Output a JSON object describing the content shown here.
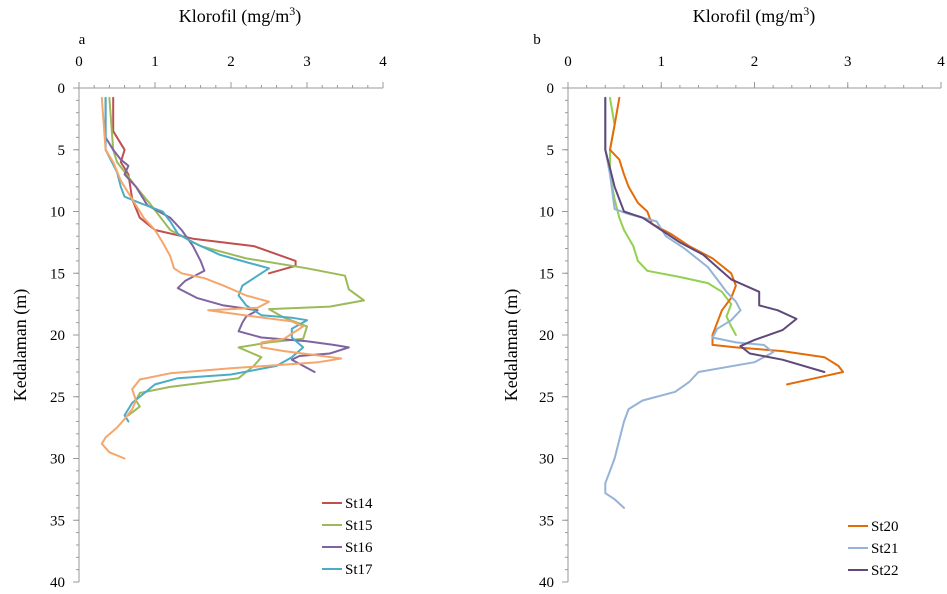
{
  "chart_data": [
    {
      "type": "line",
      "panel_label": "a",
      "title": "Klorofil (mg/m",
      "title_sup": "3",
      "title_close": ")",
      "xlabel": "",
      "ylabel": "Kedalaman (m)",
      "xlim": [
        0,
        4
      ],
      "ylim": [
        0,
        40
      ],
      "y_inverted": true,
      "x_ticks": [
        "0",
        "1",
        "2",
        "3",
        "4"
      ],
      "y_ticks": [
        "0",
        "5",
        "10",
        "15",
        "20",
        "25",
        "30",
        "35",
        "40"
      ],
      "legend_position": "bottom-right",
      "series": [
        {
          "name": "St14",
          "color": "#c0504d",
          "points": [
            [
              0.45,
              0.8
            ],
            [
              0.45,
              3.5
            ],
            [
              0.6,
              5
            ],
            [
              0.55,
              6
            ],
            [
              0.65,
              7
            ],
            [
              0.7,
              9
            ],
            [
              0.8,
              10.5
            ],
            [
              1.0,
              11.5
            ],
            [
              1.5,
              12.2
            ],
            [
              2.3,
              12.8
            ],
            [
              2.85,
              14.0
            ],
            [
              2.85,
              14.4
            ],
            [
              2.5,
              15.0
            ]
          ]
        },
        {
          "name": "St15",
          "color": "#9bbb59",
          "points": [
            [
              0.4,
              0.8
            ],
            [
              0.45,
              5
            ],
            [
              0.5,
              6
            ],
            [
              0.75,
              8
            ],
            [
              0.95,
              9.5
            ],
            [
              1.2,
              11.5
            ],
            [
              1.6,
              12.8
            ],
            [
              2.2,
              13.8
            ],
            [
              3.0,
              14.6
            ],
            [
              3.5,
              15.2
            ],
            [
              3.55,
              16.3
            ],
            [
              3.75,
              17.2
            ],
            [
              3.3,
              17.7
            ],
            [
              2.5,
              17.9
            ],
            [
              2.7,
              18.6
            ],
            [
              3.0,
              19.3
            ],
            [
              2.95,
              20.3
            ],
            [
              2.5,
              20.6
            ],
            [
              2.1,
              21.0
            ],
            [
              2.4,
              21.8
            ],
            [
              2.3,
              22.5
            ],
            [
              2.1,
              23.5
            ],
            [
              1.2,
              24.2
            ],
            [
              0.8,
              24.7
            ],
            [
              0.75,
              25.3
            ],
            [
              0.8,
              25.8
            ],
            [
              0.65,
              26.5
            ]
          ]
        },
        {
          "name": "St16",
          "color": "#8064a2",
          "points": [
            [
              0.35,
              0.8
            ],
            [
              0.35,
              4
            ],
            [
              0.45,
              5
            ],
            [
              0.55,
              5.8
            ],
            [
              0.65,
              6.3
            ],
            [
              0.6,
              7
            ],
            [
              0.75,
              8
            ],
            [
              0.9,
              9.5
            ],
            [
              1.2,
              10.5
            ],
            [
              1.35,
              11.5
            ],
            [
              1.5,
              12.8
            ],
            [
              1.6,
              14.0
            ],
            [
              1.65,
              14.8
            ],
            [
              1.4,
              15.6
            ],
            [
              1.3,
              16.2
            ],
            [
              1.55,
              17.0
            ],
            [
              1.9,
              17.6
            ],
            [
              2.35,
              18.0
            ],
            [
              2.2,
              18.5
            ],
            [
              2.15,
              19.0
            ],
            [
              2.1,
              19.7
            ],
            [
              2.4,
              20.2
            ],
            [
              3.0,
              20.5
            ],
            [
              3.35,
              20.8
            ],
            [
              3.55,
              21.0
            ],
            [
              3.3,
              21.5
            ],
            [
              2.9,
              21.7
            ],
            [
              2.8,
              22.0
            ],
            [
              3.1,
              23.0
            ]
          ]
        },
        {
          "name": "St17",
          "color": "#4bacc6",
          "points": [
            [
              0.35,
              0.8
            ],
            [
              0.35,
              5
            ],
            [
              0.5,
              6.8
            ],
            [
              0.55,
              8
            ],
            [
              0.6,
              8.8
            ],
            [
              0.8,
              9.3
            ],
            [
              1.1,
              10.0
            ],
            [
              1.2,
              10.8
            ],
            [
              1.3,
              11.8
            ],
            [
              1.5,
              12.5
            ],
            [
              1.85,
              13.5
            ],
            [
              2.2,
              14.1
            ],
            [
              2.5,
              14.6
            ],
            [
              2.35,
              15.2
            ],
            [
              2.15,
              16.0
            ],
            [
              2.1,
              16.8
            ],
            [
              2.2,
              17.6
            ],
            [
              2.4,
              18.4
            ],
            [
              2.8,
              18.6
            ],
            [
              3.0,
              18.8
            ],
            [
              2.8,
              19.5
            ],
            [
              2.8,
              20.2
            ],
            [
              2.95,
              21.0
            ],
            [
              2.8,
              21.8
            ],
            [
              2.6,
              22.5
            ],
            [
              2.0,
              23.2
            ],
            [
              1.3,
              23.5
            ],
            [
              1.0,
              24.0
            ],
            [
              0.9,
              24.5
            ],
            [
              0.7,
              25.5
            ],
            [
              0.6,
              26.5
            ],
            [
              0.65,
              27.0
            ]
          ]
        },
        {
          "name": "",
          "color": "#f4a66c",
          "points": [
            [
              0.3,
              0.8
            ],
            [
              0.35,
              5
            ],
            [
              0.45,
              6
            ],
            [
              0.55,
              7.5
            ],
            [
              0.7,
              9
            ],
            [
              0.85,
              10.5
            ],
            [
              1.0,
              11.5
            ],
            [
              1.1,
              12.5
            ],
            [
              1.2,
              13.6
            ],
            [
              1.25,
              14.6
            ],
            [
              1.35,
              15.0
            ],
            [
              1.65,
              15.4
            ],
            [
              1.9,
              16.0
            ],
            [
              2.2,
              16.8
            ],
            [
              2.5,
              17.3
            ],
            [
              2.35,
              17.8
            ],
            [
              2.0,
              17.9
            ],
            [
              1.7,
              18.0
            ],
            [
              2.3,
              18.5
            ],
            [
              2.8,
              18.9
            ],
            [
              2.95,
              19.3
            ],
            [
              2.7,
              20.3
            ],
            [
              2.4,
              20.6
            ],
            [
              2.4,
              21.0
            ],
            [
              2.7,
              21.3
            ],
            [
              3.2,
              21.7
            ],
            [
              3.45,
              21.9
            ],
            [
              3.15,
              22.2
            ],
            [
              2.0,
              22.7
            ],
            [
              1.2,
              23.1
            ],
            [
              0.8,
              23.6
            ],
            [
              0.7,
              24.4
            ],
            [
              0.75,
              25.3
            ],
            [
              0.7,
              26.0
            ],
            [
              0.6,
              26.8
            ],
            [
              0.5,
              27.5
            ],
            [
              0.35,
              28.3
            ],
            [
              0.3,
              28.8
            ],
            [
              0.4,
              29.5
            ],
            [
              0.6,
              30.0
            ]
          ]
        }
      ]
    },
    {
      "type": "line",
      "panel_label": "b",
      "title": "Klorofil (mg/m",
      "title_sup": "3",
      "title_close": ")",
      "xlabel": "",
      "ylabel": "Kedalaman (m)",
      "xlim": [
        0,
        4
      ],
      "ylim": [
        0,
        40
      ],
      "y_inverted": true,
      "x_ticks": [
        "0",
        "1",
        "2",
        "3",
        "4"
      ],
      "y_ticks": [
        "0",
        "5",
        "10",
        "15",
        "20",
        "25",
        "30",
        "35",
        "40"
      ],
      "legend_position": "bottom-right",
      "series": [
        {
          "name": "",
          "color": "#92d050",
          "points": [
            [
              0.45,
              0.8
            ],
            [
              0.5,
              3
            ],
            [
              0.45,
              5
            ],
            [
              0.45,
              7
            ],
            [
              0.5,
              9
            ],
            [
              0.55,
              10.5
            ],
            [
              0.6,
              11.5
            ],
            [
              0.7,
              12.8
            ],
            [
              0.75,
              14.0
            ],
            [
              0.85,
              14.8
            ],
            [
              1.2,
              15.3
            ],
            [
              1.5,
              15.8
            ],
            [
              1.65,
              16.5
            ],
            [
              1.75,
              17.5
            ],
            [
              1.7,
              18.5
            ],
            [
              1.75,
              19.3
            ],
            [
              1.8,
              20.0
            ]
          ]
        },
        {
          "name": "St20",
          "color": "#e36c09",
          "points": [
            [
              0.55,
              0.8
            ],
            [
              0.5,
              3
            ],
            [
              0.45,
              5
            ],
            [
              0.55,
              5.8
            ],
            [
              0.6,
              7
            ],
            [
              0.65,
              8
            ],
            [
              0.75,
              9.3
            ],
            [
              0.85,
              10.0
            ],
            [
              0.9,
              11.0
            ],
            [
              1.1,
              11.8
            ],
            [
              1.3,
              12.8
            ],
            [
              1.55,
              13.8
            ],
            [
              1.75,
              15.0
            ],
            [
              1.8,
              16.0
            ],
            [
              1.75,
              17.0
            ],
            [
              1.65,
              18.0
            ],
            [
              1.6,
              19.0
            ],
            [
              1.55,
              20.0
            ],
            [
              1.55,
              20.8
            ],
            [
              1.8,
              21.0
            ],
            [
              2.3,
              21.3
            ],
            [
              2.75,
              21.8
            ],
            [
              2.9,
              22.5
            ],
            [
              2.95,
              23.0
            ],
            [
              2.65,
              23.5
            ],
            [
              2.35,
              24.0
            ]
          ]
        },
        {
          "name": "St21",
          "color": "#95b3d7",
          "points": [
            [
              0.4,
              0.8
            ],
            [
              0.4,
              5
            ],
            [
              0.45,
              7
            ],
            [
              0.5,
              9.8
            ],
            [
              0.65,
              10.2
            ],
            [
              0.95,
              10.8
            ],
            [
              1.05,
              12.0
            ],
            [
              1.25,
              13.0
            ],
            [
              1.5,
              14.5
            ],
            [
              1.6,
              15.5
            ],
            [
              1.7,
              16.5
            ],
            [
              1.8,
              17.3
            ],
            [
              1.85,
              18.0
            ],
            [
              1.75,
              18.8
            ],
            [
              1.6,
              19.5
            ],
            [
              1.55,
              20.2
            ],
            [
              1.8,
              20.6
            ],
            [
              2.1,
              20.8
            ],
            [
              2.2,
              21.4
            ],
            [
              2.0,
              22.2
            ],
            [
              1.4,
              23.0
            ],
            [
              1.3,
              23.8
            ],
            [
              1.15,
              24.6
            ],
            [
              0.8,
              25.3
            ],
            [
              0.65,
              26.0
            ],
            [
              0.6,
              27.0
            ],
            [
              0.55,
              28.5
            ],
            [
              0.5,
              30.0
            ],
            [
              0.45,
              31.0
            ],
            [
              0.4,
              32.0
            ],
            [
              0.4,
              32.8
            ],
            [
              0.5,
              33.3
            ],
            [
              0.6,
              34.0
            ]
          ]
        },
        {
          "name": "St22",
          "color": "#5f497a",
          "points": [
            [
              0.4,
              0.8
            ],
            [
              0.4,
              5
            ],
            [
              0.45,
              6.5
            ],
            [
              0.5,
              8.0
            ],
            [
              0.6,
              10.0
            ],
            [
              0.8,
              10.5
            ],
            [
              1.0,
              11.5
            ],
            [
              1.2,
              12.5
            ],
            [
              1.45,
              13.5
            ],
            [
              1.6,
              14.5
            ],
            [
              1.75,
              15.5
            ],
            [
              2.05,
              16.5
            ],
            [
              2.05,
              17.6
            ],
            [
              2.25,
              18.0
            ],
            [
              2.45,
              18.7
            ],
            [
              2.3,
              19.6
            ],
            [
              2.0,
              20.4
            ],
            [
              1.85,
              20.9
            ],
            [
              1.95,
              21.5
            ],
            [
              2.3,
              22.0
            ],
            [
              2.75,
              23.0
            ]
          ]
        }
      ]
    }
  ]
}
